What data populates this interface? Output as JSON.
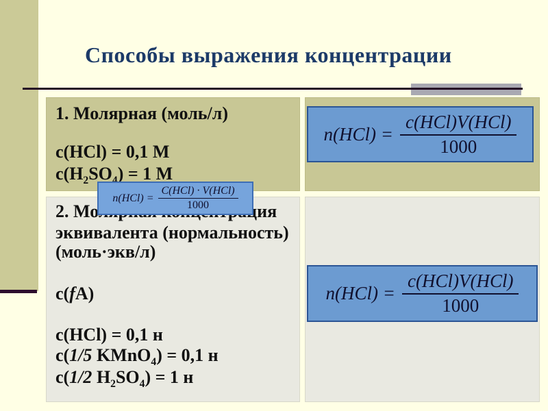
{
  "slide": {
    "title": "Способы выражения концентрации",
    "table": {
      "row1_left": {
        "lines": [
          [
            {
              "t": "1. Молярная  (моль/л)"
            }
          ],
          [
            {
              "t": "c(HCl) = 0,1 М"
            }
          ],
          [
            {
              "t": "c(H"
            },
            {
              "t": "2",
              "s": true
            },
            {
              "t": "SO"
            },
            {
              "t": "4",
              "s": true
            },
            {
              "t": ") = 1 М"
            }
          ]
        ]
      },
      "row2_left": {
        "lines": [
          [
            {
              "t": "2. Молярная концентрация"
            }
          ],
          [
            {
              "t": "эквивалента (нормальность)"
            }
          ],
          [
            {
              "t": "(моль·экв/л)"
            }
          ],
          [
            {
              "t": "c("
            },
            {
              "t": "f",
              "i": true
            },
            {
              "t": "A)"
            }
          ],
          [
            {
              "t": "c(HCl) = 0,1 н"
            }
          ],
          [
            {
              "t": "c("
            },
            {
              "t": "1/5",
              "i": true
            },
            {
              "t": " KMnO"
            },
            {
              "t": "4",
              "s": true
            },
            {
              "t": ") = 0,1 н"
            }
          ],
          [
            {
              "t": "c("
            },
            {
              "t": "1/2",
              "i": true
            },
            {
              "t": " H"
            },
            {
              "t": "2",
              "s": true
            },
            {
              "t": "SO"
            },
            {
              "t": "4",
              "s": true
            },
            {
              "t": ") = 1 н"
            }
          ]
        ]
      }
    },
    "formulas": {
      "molar": {
        "lhs": "n(HCl) =",
        "numerator": "c(HCl)V(HCl)",
        "denominator": "1000"
      },
      "equivalent": {
        "lhs": "n(HCl) =",
        "numerator": "c(HCl)V(HCl)",
        "denominator": "1000"
      },
      "overlay": {
        "lhs": "n(HCl) =",
        "numerator": "C(HCl) · V(HCl)",
        "denominator": "1000"
      }
    },
    "colors": {
      "background": "#FFFFE5",
      "side_band": "#CBCA97",
      "accent_dark": "#2D0E2D",
      "title_navy": "#1C3A68",
      "gray_bar": "#A9A9B2",
      "row1_cell": "#C8C795",
      "row2_cell": "#E9E9E1",
      "formula_fill": "#6C9BD1",
      "formula_border": "#2B5595",
      "text_black": "#111111"
    }
  }
}
